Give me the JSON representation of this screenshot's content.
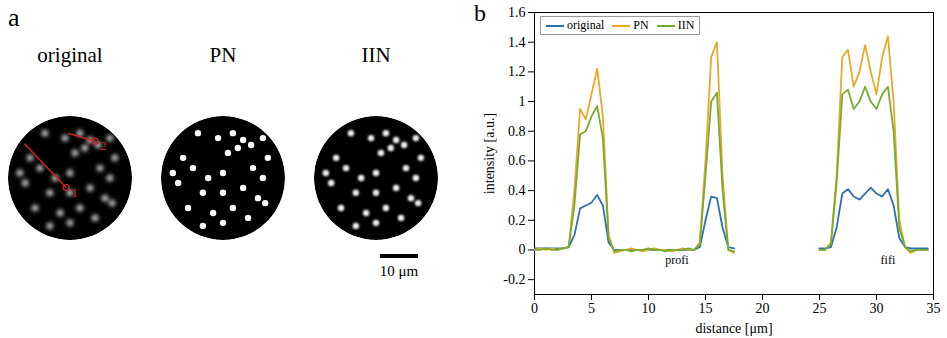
{
  "chart_data": {
    "type": "line",
    "panel_label": "b",
    "x_label": "distance [μm]",
    "y_label": "intensity [a.u.]",
    "x": [
      0,
      0.5,
      1,
      1.5,
      2,
      2.5,
      3,
      3.5,
      4,
      4.5,
      5,
      5.5,
      6,
      6.5,
      7,
      7.5,
      8,
      8.5,
      9,
      9.5,
      10,
      10.5,
      11,
      11.5,
      12,
      12.5,
      13,
      13.5,
      14,
      14.5,
      15,
      15.5,
      16,
      16.5,
      17,
      17.5,
      18,
      18.5,
      19,
      19.5,
      20,
      20.5,
      21,
      21.5,
      22,
      22.5,
      23,
      23.5,
      24,
      24.5,
      25,
      25.5,
      26,
      26.5,
      27,
      27.5,
      28,
      28.5,
      29,
      29.5,
      30,
      30.5,
      31,
      31.5,
      32,
      32.5,
      33,
      33.5,
      34,
      34.5
    ],
    "series": [
      {
        "name": "original",
        "color": "#2e6fad",
        "values": [
          0.01,
          0.01,
          0.01,
          0.01,
          0.01,
          0.01,
          0.02,
          0.1,
          0.28,
          0.3,
          0.32,
          0.37,
          0.3,
          0.05,
          0,
          0,
          0,
          0,
          0,
          0,
          0,
          0,
          0,
          0,
          0,
          0,
          0,
          0,
          0,
          0.02,
          0.2,
          0.36,
          0.35,
          0.15,
          0.02,
          0.01,
          null,
          null,
          null,
          null,
          null,
          null,
          null,
          null,
          null,
          null,
          null,
          null,
          null,
          null,
          0.01,
          0.01,
          0.02,
          0.15,
          0.38,
          0.41,
          0.36,
          0.34,
          0.38,
          0.42,
          0.38,
          0.36,
          0.41,
          0.3,
          0.08,
          0.02,
          0.01,
          0.01,
          0.01,
          0.01
        ]
      },
      {
        "name": "PN",
        "color": "#e8a92a",
        "values": [
          0,
          0.01,
          0,
          0.01,
          0,
          0.01,
          0.02,
          0.4,
          0.95,
          0.88,
          1.05,
          1.22,
          0.9,
          0.1,
          -0.02,
          -0.01,
          0,
          0.01,
          0,
          -0.01,
          0,
          0.01,
          0,
          0,
          -0.01,
          0,
          0.01,
          0,
          0,
          0.05,
          0.6,
          1.3,
          1.4,
          0.5,
          0,
          -0.02,
          null,
          null,
          null,
          null,
          null,
          null,
          null,
          null,
          null,
          null,
          null,
          null,
          null,
          null,
          0,
          0,
          0.05,
          0.5,
          1.3,
          1.35,
          1.1,
          1.2,
          1.38,
          1.2,
          1.05,
          1.3,
          1.44,
          1,
          0.2,
          0.02,
          -0.02,
          0,
          0,
          0
        ]
      },
      {
        "name": "IIN",
        "color": "#77ac30",
        "values": [
          0,
          0,
          0.01,
          0,
          0,
          0.01,
          0.02,
          0.3,
          0.78,
          0.8,
          0.9,
          0.97,
          0.75,
          0.08,
          -0.01,
          0,
          0,
          -0.01,
          0,
          0,
          0.01,
          0,
          0,
          -0.01,
          0,
          0,
          0,
          0.01,
          0,
          0.04,
          0.5,
          1,
          1.06,
          0.4,
          0,
          -0.01,
          null,
          null,
          null,
          null,
          null,
          null,
          null,
          null,
          null,
          null,
          null,
          null,
          null,
          null,
          0,
          0,
          0.04,
          0.45,
          1.05,
          1.08,
          0.95,
          1,
          1.1,
          1,
          0.95,
          1.05,
          1.1,
          0.8,
          0.15,
          0.02,
          -0.01,
          0,
          0,
          0
        ]
      }
    ],
    "xlim": [
      0,
      35
    ],
    "ylim": [
      -0.3,
      1.6
    ],
    "xticks": [
      0,
      5,
      10,
      15,
      20,
      25,
      30,
      35
    ],
    "yticks": [
      -0.2,
      0,
      0.2,
      0.4,
      0.6,
      0.8,
      1,
      1.2,
      1.4,
      1.6
    ],
    "legend": "top-left",
    "annotations": [
      {
        "text": "profi",
        "x": 12.5,
        "y": -0.07
      },
      {
        "text": "fifi",
        "x": 31,
        "y": -0.07
      }
    ]
  },
  "images": {
    "panel_label": "a",
    "titles": [
      "original",
      "PN",
      "IIN"
    ],
    "spots_um": {
      "x": [
        -6.6,
        -1.3,
        2.6,
        5.3,
        7.4,
        3.9,
        1.3,
        -10.5,
        -7.9,
        -3.9,
        0,
        7.9,
        10.5,
        11.8,
        -11.8,
        -5.3,
        0,
        5.3,
        9.2,
        11.1,
        -9.2,
        -2.6,
        2.6,
        6.6,
        0,
        -5.3,
        10.5,
        -13.2
      ],
      "y": [
        -11.8,
        -10.5,
        -11.8,
        -10,
        -8.7,
        -7.9,
        -6.6,
        -5.3,
        -2.6,
        0,
        -1.3,
        -2.6,
        0,
        -5.3,
        1.3,
        3.9,
        3.9,
        2.6,
        5.3,
        6.6,
        7.9,
        9.2,
        7.9,
        10.5,
        11.8,
        12.6,
        -10.5,
        -1.3
      ]
    },
    "profiles": [
      {
        "label": "1",
        "from": [
          -12,
          -9
        ],
        "to": [
          -1,
          2.5
        ]
      },
      {
        "label": "2",
        "from": [
          -0.5,
          -11.8
        ],
        "to": [
          6.6,
          -9.7
        ]
      }
    ],
    "scale_bar": {
      "length": 10,
      "label": "10 μm"
    }
  }
}
